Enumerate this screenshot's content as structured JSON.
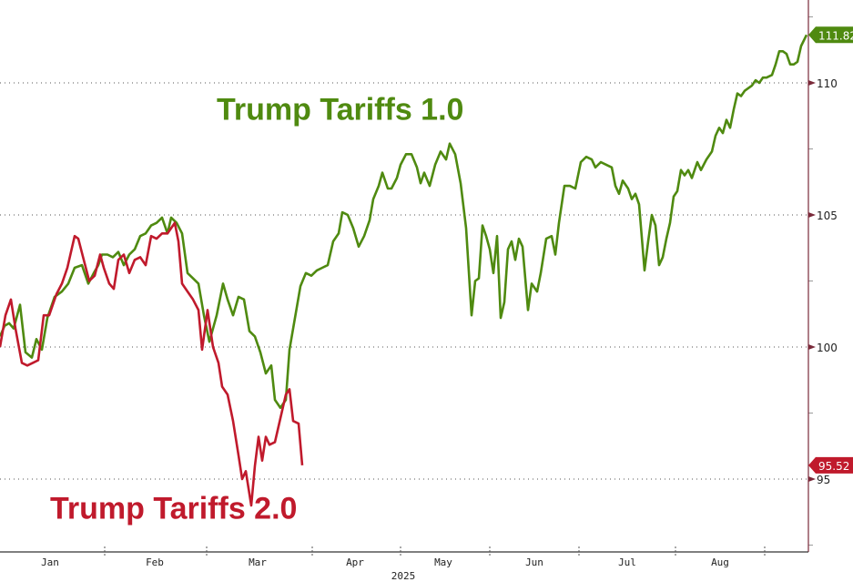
{
  "chart_data": {
    "type": "line",
    "title": "",
    "xlabel": "2025",
    "ylabel": "",
    "x_unit": "trading days from start of January",
    "xlim": [
      0,
      177.6
    ],
    "ylim": [
      92.24,
      113.14
    ],
    "y_ticks": [
      95,
      100,
      105,
      110
    ],
    "y_axis_side": "right",
    "grid": "horizontal dotted",
    "months": [
      {
        "label": "Jan",
        "center": 11
      },
      {
        "label": "Feb",
        "center": 34
      },
      {
        "label": "Mar",
        "center": 56.6
      },
      {
        "label": "Apr",
        "center": 78
      },
      {
        "label": "May",
        "center": 97.4
      },
      {
        "label": "Jun",
        "center": 117.4
      },
      {
        "label": "Jul",
        "center": 137.8
      },
      {
        "label": "Aug",
        "center": 158.2
      }
    ],
    "month_boundaries": [
      23,
      45.4,
      68.6,
      88,
      107.6,
      127.2,
      148.4,
      168
    ],
    "year_label": "2025",
    "colors": {
      "green": "#4f8a10",
      "red": "#c01a2c",
      "axis": "#7a2a3a",
      "grid": "#555555"
    },
    "series": [
      {
        "name": "Trump Tariffs 1.0",
        "color": "#4f8a10",
        "last_value_label": "111.82",
        "points": [
          [
            0,
            100.4
          ],
          [
            1,
            100.8
          ],
          [
            2,
            100.9
          ],
          [
            3,
            100.7
          ],
          [
            4.4,
            101.6
          ],
          [
            5.6,
            99.8
          ],
          [
            7,
            99.6
          ],
          [
            8,
            100.3
          ],
          [
            9.2,
            99.9
          ],
          [
            10.4,
            101.1
          ],
          [
            12,
            101.9
          ],
          [
            13.6,
            102.1
          ],
          [
            15,
            102.4
          ],
          [
            16.4,
            103.0
          ],
          [
            18,
            103.1
          ],
          [
            19.4,
            102.4
          ],
          [
            20.6,
            102.8
          ],
          [
            21.6,
            103.1
          ],
          [
            22.4,
            103.5
          ],
          [
            23.6,
            103.5
          ],
          [
            24.8,
            103.4
          ],
          [
            26,
            103.6
          ],
          [
            27.2,
            103.1
          ],
          [
            28.4,
            103.5
          ],
          [
            29.6,
            103.7
          ],
          [
            30.8,
            104.2
          ],
          [
            32,
            104.3
          ],
          [
            33.2,
            104.6
          ],
          [
            34.4,
            104.7
          ],
          [
            35.6,
            104.9
          ],
          [
            36.8,
            104.3
          ],
          [
            37.6,
            104.9
          ],
          [
            38.8,
            104.7
          ],
          [
            40,
            104.3
          ],
          [
            41.2,
            102.8
          ],
          [
            42.4,
            102.6
          ],
          [
            43.6,
            102.4
          ],
          [
            44.8,
            101.2
          ],
          [
            46,
            100.2
          ],
          [
            47.6,
            101.2
          ],
          [
            49,
            102.4
          ],
          [
            50,
            101.8
          ],
          [
            51.2,
            101.2
          ],
          [
            52.4,
            101.9
          ],
          [
            53.6,
            101.8
          ],
          [
            54.8,
            100.6
          ],
          [
            56,
            100.4
          ],
          [
            57.2,
            99.8
          ],
          [
            58.4,
            99.0
          ],
          [
            59.6,
            99.3
          ],
          [
            60.4,
            98.0
          ],
          [
            61.6,
            97.7
          ],
          [
            62.8,
            98.0
          ],
          [
            63.6,
            99.9
          ],
          [
            64.8,
            101.1
          ],
          [
            66,
            102.3
          ],
          [
            67.2,
            102.8
          ],
          [
            68.4,
            102.7
          ],
          [
            69.6,
            102.9
          ],
          [
            70.8,
            103.0
          ],
          [
            72,
            103.1
          ],
          [
            73.2,
            104.0
          ],
          [
            74.4,
            104.3
          ],
          [
            75.2,
            105.1
          ],
          [
            76.4,
            105.0
          ],
          [
            77.6,
            104.5
          ],
          [
            78.8,
            103.8
          ],
          [
            80,
            104.2
          ],
          [
            81.2,
            104.8
          ],
          [
            82,
            105.6
          ],
          [
            83.2,
            106.1
          ],
          [
            84,
            106.6
          ],
          [
            85.2,
            106.0
          ],
          [
            86,
            106.0
          ],
          [
            87.2,
            106.4
          ],
          [
            88,
            106.9
          ],
          [
            89.2,
            107.3
          ],
          [
            90.4,
            107.3
          ],
          [
            91.6,
            106.8
          ],
          [
            92.4,
            106.2
          ],
          [
            93.2,
            106.6
          ],
          [
            94.4,
            106.1
          ],
          [
            95.6,
            106.9
          ],
          [
            96.8,
            107.4
          ],
          [
            98,
            107.1
          ],
          [
            98.8,
            107.7
          ],
          [
            100,
            107.3
          ],
          [
            101.2,
            106.2
          ],
          [
            102.4,
            104.5
          ],
          [
            103.6,
            101.2
          ],
          [
            104.4,
            102.5
          ],
          [
            105.2,
            102.6
          ],
          [
            106,
            104.6
          ],
          [
            106.8,
            104.2
          ],
          [
            107.6,
            103.7
          ],
          [
            108.4,
            102.8
          ],
          [
            109.2,
            104.2
          ],
          [
            110,
            101.1
          ],
          [
            110.8,
            101.7
          ],
          [
            111.6,
            103.7
          ],
          [
            112.4,
            104.0
          ],
          [
            113.2,
            103.3
          ],
          [
            114,
            104.1
          ],
          [
            114.8,
            103.8
          ],
          [
            116,
            101.4
          ],
          [
            116.8,
            102.4
          ],
          [
            118,
            102.1
          ],
          [
            118.8,
            102.8
          ],
          [
            120,
            104.1
          ],
          [
            121.2,
            104.2
          ],
          [
            122,
            103.5
          ],
          [
            122.8,
            104.7
          ],
          [
            124,
            106.1
          ],
          [
            125.2,
            106.1
          ],
          [
            126.4,
            106.0
          ],
          [
            127.6,
            107.0
          ],
          [
            128.8,
            107.2
          ],
          [
            130,
            107.1
          ],
          [
            130.8,
            106.8
          ],
          [
            132,
            107.0
          ],
          [
            133.2,
            106.9
          ],
          [
            134.4,
            106.8
          ],
          [
            135.2,
            106.1
          ],
          [
            136,
            105.8
          ],
          [
            136.8,
            106.3
          ],
          [
            138,
            106.0
          ],
          [
            138.8,
            105.6
          ],
          [
            139.6,
            105.8
          ],
          [
            140.4,
            105.4
          ],
          [
            141.6,
            102.9
          ],
          [
            142.4,
            104.0
          ],
          [
            143.2,
            105.0
          ],
          [
            144,
            104.6
          ],
          [
            144.8,
            103.1
          ],
          [
            145.6,
            103.4
          ],
          [
            146.4,
            104.1
          ],
          [
            147.2,
            104.7
          ],
          [
            148,
            105.7
          ],
          [
            148.8,
            105.9
          ],
          [
            149.6,
            106.7
          ],
          [
            150.4,
            106.5
          ],
          [
            151.2,
            106.7
          ],
          [
            152,
            106.4
          ],
          [
            153.2,
            107.0
          ],
          [
            154,
            106.7
          ],
          [
            155.2,
            107.1
          ],
          [
            156.4,
            107.4
          ],
          [
            157.2,
            108.0
          ],
          [
            158,
            108.3
          ],
          [
            158.8,
            108.1
          ],
          [
            159.6,
            108.6
          ],
          [
            160.4,
            108.3
          ],
          [
            161.2,
            109.0
          ],
          [
            162,
            109.6
          ],
          [
            162.8,
            109.5
          ],
          [
            163.6,
            109.7
          ],
          [
            164.4,
            109.8
          ],
          [
            165.2,
            109.9
          ],
          [
            166,
            110.1
          ],
          [
            166.8,
            110.0
          ],
          [
            167.6,
            110.2
          ],
          [
            168.4,
            110.2
          ],
          [
            169.6,
            110.3
          ],
          [
            170.4,
            110.7
          ],
          [
            171.2,
            111.2
          ],
          [
            172,
            111.2
          ],
          [
            172.8,
            111.1
          ],
          [
            173.6,
            110.7
          ],
          [
            174.4,
            110.7
          ],
          [
            175.2,
            110.8
          ],
          [
            176,
            111.4
          ],
          [
            177.2,
            111.82
          ]
        ]
      },
      {
        "name": "Trump Tariffs 2.0",
        "color": "#c01a2c",
        "last_value_label": "95.52",
        "points": [
          [
            0,
            100.0
          ],
          [
            1.2,
            101.2
          ],
          [
            2.4,
            101.8
          ],
          [
            3.4,
            100.7
          ],
          [
            4.8,
            99.4
          ],
          [
            6,
            99.3
          ],
          [
            7.2,
            99.4
          ],
          [
            8.4,
            99.5
          ],
          [
            9.6,
            101.2
          ],
          [
            10.8,
            101.2
          ],
          [
            12.4,
            102.0
          ],
          [
            13.6,
            102.4
          ],
          [
            14.8,
            103.0
          ],
          [
            15.6,
            103.6
          ],
          [
            16.4,
            104.2
          ],
          [
            17.2,
            104.1
          ],
          [
            18.4,
            103.3
          ],
          [
            19.6,
            102.5
          ],
          [
            20.8,
            102.7
          ],
          [
            22,
            103.5
          ],
          [
            22.8,
            103.0
          ],
          [
            24,
            102.4
          ],
          [
            25,
            102.2
          ],
          [
            26,
            103.3
          ],
          [
            27.2,
            103.5
          ],
          [
            28.4,
            102.8
          ],
          [
            29.6,
            103.3
          ],
          [
            30.8,
            103.4
          ],
          [
            32,
            103.1
          ],
          [
            33.2,
            104.2
          ],
          [
            34.4,
            104.1
          ],
          [
            35.6,
            104.3
          ],
          [
            36.8,
            104.3
          ],
          [
            37.6,
            104.5
          ],
          [
            38.4,
            104.7
          ],
          [
            39.2,
            104.0
          ],
          [
            40,
            102.4
          ],
          [
            41.2,
            102.1
          ],
          [
            42.4,
            101.8
          ],
          [
            43.6,
            101.4
          ],
          [
            44.4,
            99.9
          ],
          [
            45.6,
            101.4
          ],
          [
            46.8,
            100.0
          ],
          [
            48,
            99.4
          ],
          [
            48.8,
            98.5
          ],
          [
            50,
            98.2
          ],
          [
            51.2,
            97.2
          ],
          [
            52.4,
            95.9
          ],
          [
            53.2,
            95.0
          ],
          [
            54,
            95.3
          ],
          [
            55.2,
            94.0
          ],
          [
            56,
            95.5
          ],
          [
            56.8,
            96.6
          ],
          [
            57.6,
            95.7
          ],
          [
            58.4,
            96.6
          ],
          [
            59.2,
            96.3
          ],
          [
            60.4,
            96.4
          ],
          [
            61.6,
            97.3
          ],
          [
            62.8,
            98.2
          ],
          [
            63.6,
            98.4
          ],
          [
            64.4,
            97.2
          ],
          [
            65.6,
            97.1
          ],
          [
            66.4,
            95.52
          ]
        ]
      }
    ],
    "annotations": [
      {
        "text": "Trump Tariffs 1.0",
        "color": "#4f8a10",
        "anchor_x": 47.6,
        "anchor_y": 108.6
      },
      {
        "text": "Trump Tariffs 2.0",
        "color": "#c01a2c",
        "anchor_x": 11,
        "anchor_y": 93.5
      }
    ]
  }
}
